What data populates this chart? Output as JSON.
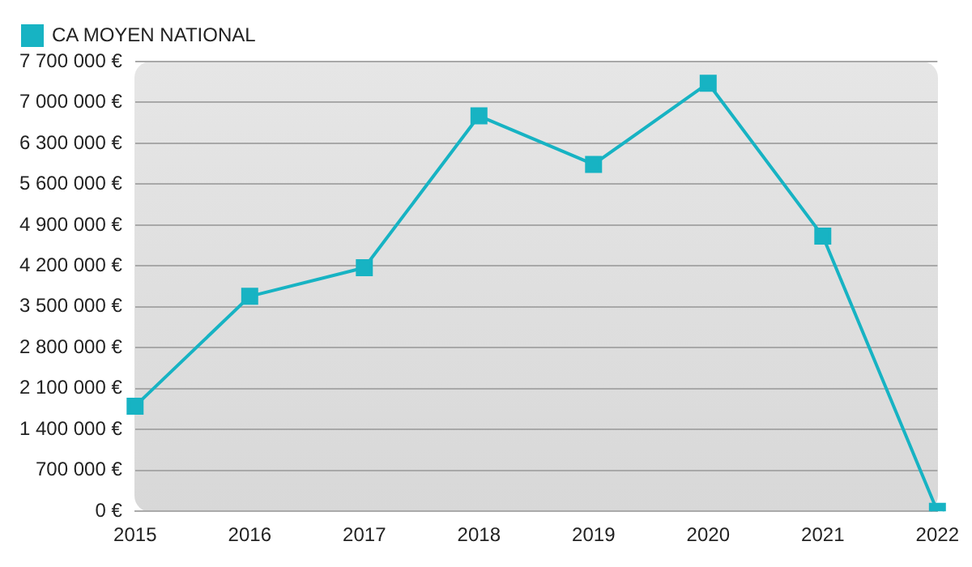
{
  "chart_data": {
    "type": "line",
    "categories": [
      "2015",
      "2016",
      "2017",
      "2018",
      "2019",
      "2020",
      "2021",
      "2022"
    ],
    "series": [
      {
        "name": "CA MOYEN NATIONAL",
        "color": "#17b3c3",
        "values": [
          1800000,
          3680000,
          4170000,
          6770000,
          5940000,
          7330000,
          4710000,
          0
        ]
      }
    ],
    "ylim": [
      0,
      7700000
    ],
    "yticks": [
      {
        "value": 0,
        "label": "0 €"
      },
      {
        "value": 700000,
        "label": "700 000 €"
      },
      {
        "value": 1400000,
        "label": "1 400 000 €"
      },
      {
        "value": 2100000,
        "label": "2 100 000 €"
      },
      {
        "value": 2800000,
        "label": "2 800 000 €"
      },
      {
        "value": 3500000,
        "label": "3 500 000 €"
      },
      {
        "value": 4200000,
        "label": "4 200 000 €"
      },
      {
        "value": 4900000,
        "label": "4 900 000 €"
      },
      {
        "value": 5600000,
        "label": "5 600 000 €"
      },
      {
        "value": 6300000,
        "label": "6 300 000 €"
      },
      {
        "value": 7000000,
        "label": "7 000 000 €"
      },
      {
        "value": 7700000,
        "label": "7 700 000 €"
      }
    ],
    "grid": "y",
    "legend": "top left",
    "marker": "square",
    "line_style": "solid"
  }
}
